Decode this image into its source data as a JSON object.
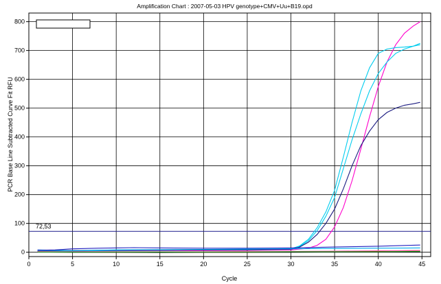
{
  "chart_data": {
    "type": "line",
    "title": "Amplification Chart : 2007-05-03 HPV genotype+CMV+Uu+B19.opd",
    "xlabel": "Cycle",
    "ylabel": "PCR Base Line Subtracted Curve Fit RFU",
    "xlim": [
      0,
      46
    ],
    "ylim": [
      -15,
      830
    ],
    "x_ticks": [
      "0",
      "5",
      "10",
      "15",
      "20",
      "25",
      "30",
      "35",
      "40",
      "45"
    ],
    "y_ticks": [
      "0",
      "100",
      "200",
      "300",
      "400",
      "500",
      "600",
      "700",
      "800"
    ],
    "grid": true,
    "threshold": {
      "value": 72.53,
      "label": "72,53",
      "color": "#1a1a8c"
    },
    "legend_placement": "top-left",
    "series": [
      {
        "color": "#ff00cc",
        "x": [
          1,
          5,
          10,
          15,
          20,
          25,
          30,
          32,
          33,
          34,
          35,
          36,
          37,
          38,
          39,
          40,
          41,
          42,
          43,
          44,
          44.8
        ],
        "y": [
          8,
          4,
          5,
          6,
          6,
          7,
          8,
          14,
          24,
          45,
          88,
          155,
          248,
          358,
          470,
          575,
          660,
          720,
          760,
          785,
          800
        ]
      },
      {
        "color": "#00ccee",
        "x": [
          1,
          5,
          10,
          15,
          20,
          25,
          30,
          31,
          32,
          33,
          34,
          35,
          36,
          37,
          38,
          39,
          40,
          41,
          42,
          43,
          44,
          44.8
        ],
        "y": [
          8,
          6,
          8,
          8,
          8,
          9,
          12,
          22,
          45,
          85,
          140,
          215,
          330,
          450,
          560,
          640,
          690,
          705,
          710,
          712,
          715,
          720
        ]
      },
      {
        "color": "#00ccee",
        "x": [
          1,
          5,
          10,
          15,
          20,
          25,
          30,
          31,
          32,
          33,
          34,
          35,
          36,
          37,
          38,
          39,
          40,
          41,
          42,
          43,
          44,
          44.8
        ],
        "y": [
          5,
          5,
          6,
          7,
          8,
          9,
          11,
          20,
          40,
          75,
          125,
          190,
          290,
          390,
          480,
          560,
          620,
          660,
          690,
          705,
          715,
          725
        ]
      },
      {
        "color": "#1a1a80",
        "x": [
          1,
          5,
          10,
          15,
          20,
          25,
          30,
          31,
          32,
          33,
          34,
          35,
          36,
          37,
          38,
          39,
          40,
          41,
          42,
          43,
          44,
          44.8
        ],
        "y": [
          5,
          6,
          7,
          7,
          8,
          8,
          10,
          18,
          35,
          62,
          100,
          150,
          220,
          300,
          370,
          420,
          460,
          485,
          500,
          510,
          515,
          520
        ]
      },
      {
        "color": "#2020c0",
        "x": [
          1,
          3,
          5,
          8,
          10,
          12,
          15,
          20,
          25,
          30,
          35,
          40,
          44.8
        ],
        "y": [
          7,
          8,
          12,
          14,
          15,
          16,
          15,
          14,
          14,
          15,
          18,
          21,
          25
        ]
      },
      {
        "color": "#00aaee",
        "x": [
          1,
          5,
          10,
          15,
          20,
          25,
          30,
          35,
          40,
          44.8
        ],
        "y": [
          4,
          5,
          8,
          9,
          10,
          11,
          12,
          13,
          14,
          15
        ]
      },
      {
        "color": "#cc0000",
        "x": [
          1,
          5,
          10,
          15,
          20,
          25,
          30,
          35,
          40,
          44.8
        ],
        "y": [
          2,
          1,
          0,
          0,
          0,
          0,
          1,
          2,
          4,
          6
        ]
      },
      {
        "color": "#000000",
        "x": [
          1,
          5,
          10,
          15,
          20,
          25,
          30,
          35,
          40,
          44.8
        ],
        "y": [
          1,
          0,
          0,
          -1,
          0,
          0,
          0,
          1,
          1,
          2
        ]
      },
      {
        "color": "#ff55aa",
        "x": [
          1,
          5,
          10,
          15,
          20,
          25,
          30,
          35,
          40,
          44.8
        ],
        "y": [
          3,
          2,
          2,
          2,
          2,
          3,
          3,
          4,
          5,
          6
        ]
      },
      {
        "color": "#22aa22",
        "x": [
          1,
          5,
          10,
          15,
          20,
          25,
          30,
          35,
          40,
          44.8
        ],
        "y": [
          1,
          1,
          1,
          1,
          1,
          1,
          2,
          2,
          2,
          3
        ]
      }
    ]
  }
}
